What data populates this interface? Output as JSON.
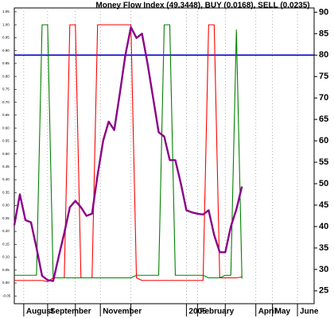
{
  "chart_data": {
    "type": "line",
    "title": "Money Flow Index (49.3448), BUY (0.0168), SELL (0.0235)",
    "x": [
      0,
      1,
      2,
      3,
      4,
      5,
      6,
      7,
      8,
      9,
      10,
      11,
      12,
      13,
      14,
      15,
      16,
      17,
      18,
      19,
      20,
      21,
      22,
      23,
      24,
      25,
      26,
      27,
      28,
      29,
      30,
      31,
      32,
      33,
      34,
      35,
      36,
      37,
      38,
      39,
      40,
      41
    ],
    "xlim": [
      0,
      54
    ],
    "xticks": [
      {
        "value": 1.7,
        "label": "August"
      },
      {
        "value": 6,
        "label": "September"
      },
      {
        "value": 11,
        "label": null
      },
      {
        "value": 15.5,
        "label": "November"
      },
      {
        "value": 21,
        "label": null
      },
      {
        "value": 31,
        "label": "2005"
      },
      {
        "value": 33,
        "label": "February"
      },
      {
        "value": 38,
        "label": null
      },
      {
        "value": 43.5,
        "label": "April"
      },
      {
        "value": 46.5,
        "label": "May"
      },
      {
        "value": 51,
        "label": "June"
      }
    ],
    "ylim": [
      -0.08,
      1.065
    ],
    "yticks": [
      -0.05,
      {
        "value": 0,
        "label": "0.00"
      },
      0.05,
      {
        "value": 0.1,
        "label": "0.10"
      },
      0.15,
      {
        "value": 0.2,
        "label": "0.20"
      },
      0.25,
      {
        "value": 0.3,
        "label": "0.30"
      },
      0.35,
      {
        "value": 0.4,
        "label": "0.40"
      },
      0.45,
      {
        "value": 0.5,
        "label": "0.50"
      },
      0.55,
      {
        "value": 0.6,
        "label": "0.60"
      },
      0.65,
      {
        "value": 0.7,
        "label": "0.70"
      },
      0.75,
      {
        "value": 0.8,
        "label": "0.80"
      },
      0.85,
      {
        "value": 0.9,
        "label": "0.90"
      },
      0.95,
      {
        "value": 1,
        "label": "1.00"
      },
      1.05
    ],
    "y2lim": [
      22,
      91
    ],
    "y2ticks": [
      25,
      30,
      35,
      40,
      45,
      50,
      55,
      60,
      65,
      70,
      75,
      80,
      85,
      90
    ],
    "grid": true,
    "reference_line": {
      "value": 80,
      "axis": "y2",
      "color": "#0000cc"
    },
    "series": [
      {
        "color": "#8a008a",
        "axis": "y2",
        "values": [
          40.3,
          47.5,
          41.5,
          41,
          35,
          28.5,
          27.5,
          27.3,
          33,
          38.5,
          44.5,
          46,
          44.5,
          42.5,
          43,
          52,
          60,
          64.5,
          62.5,
          71,
          80,
          86.5,
          84,
          85,
          78,
          70,
          62,
          61,
          55.5,
          55.5,
          50,
          43.8,
          43.3,
          43,
          42.8,
          43.8,
          38,
          34,
          34,
          40,
          44,
          49.3448
        ]
      },
      {
        "color": "#008000",
        "values": [
          0.03,
          0.03,
          0.03,
          0.03,
          0.03,
          1,
          1,
          0.02,
          0.02,
          0.02,
          0.02,
          0.02,
          0.02,
          0.02,
          0.02,
          0.02,
          0.02,
          0.02,
          0.02,
          0.02,
          0.02,
          0.02,
          0.03,
          0.03,
          0.03,
          0.03,
          0.03,
          1,
          1,
          0.03,
          0.03,
          0.03,
          0.03,
          0.03,
          0.03,
          0.02,
          0.02,
          0.02,
          0.03,
          0.03,
          0.98,
          0.0168
        ]
      },
      {
        "color": "#ff0000",
        "values": [
          0.01,
          0.01,
          0.01,
          0.01,
          0.01,
          0.01,
          0.005,
          0.02,
          0.02,
          0.02,
          1,
          1,
          0.02,
          0.02,
          0.02,
          1,
          1,
          1,
          1,
          1,
          1,
          1,
          0.02,
          0.01,
          0.01,
          0.01,
          0.01,
          0.01,
          0.01,
          0.01,
          0.01,
          0.01,
          0.01,
          0.01,
          0.01,
          1,
          1,
          0.02,
          0.02,
          0.02,
          0.02,
          0.0235
        ]
      }
    ]
  }
}
